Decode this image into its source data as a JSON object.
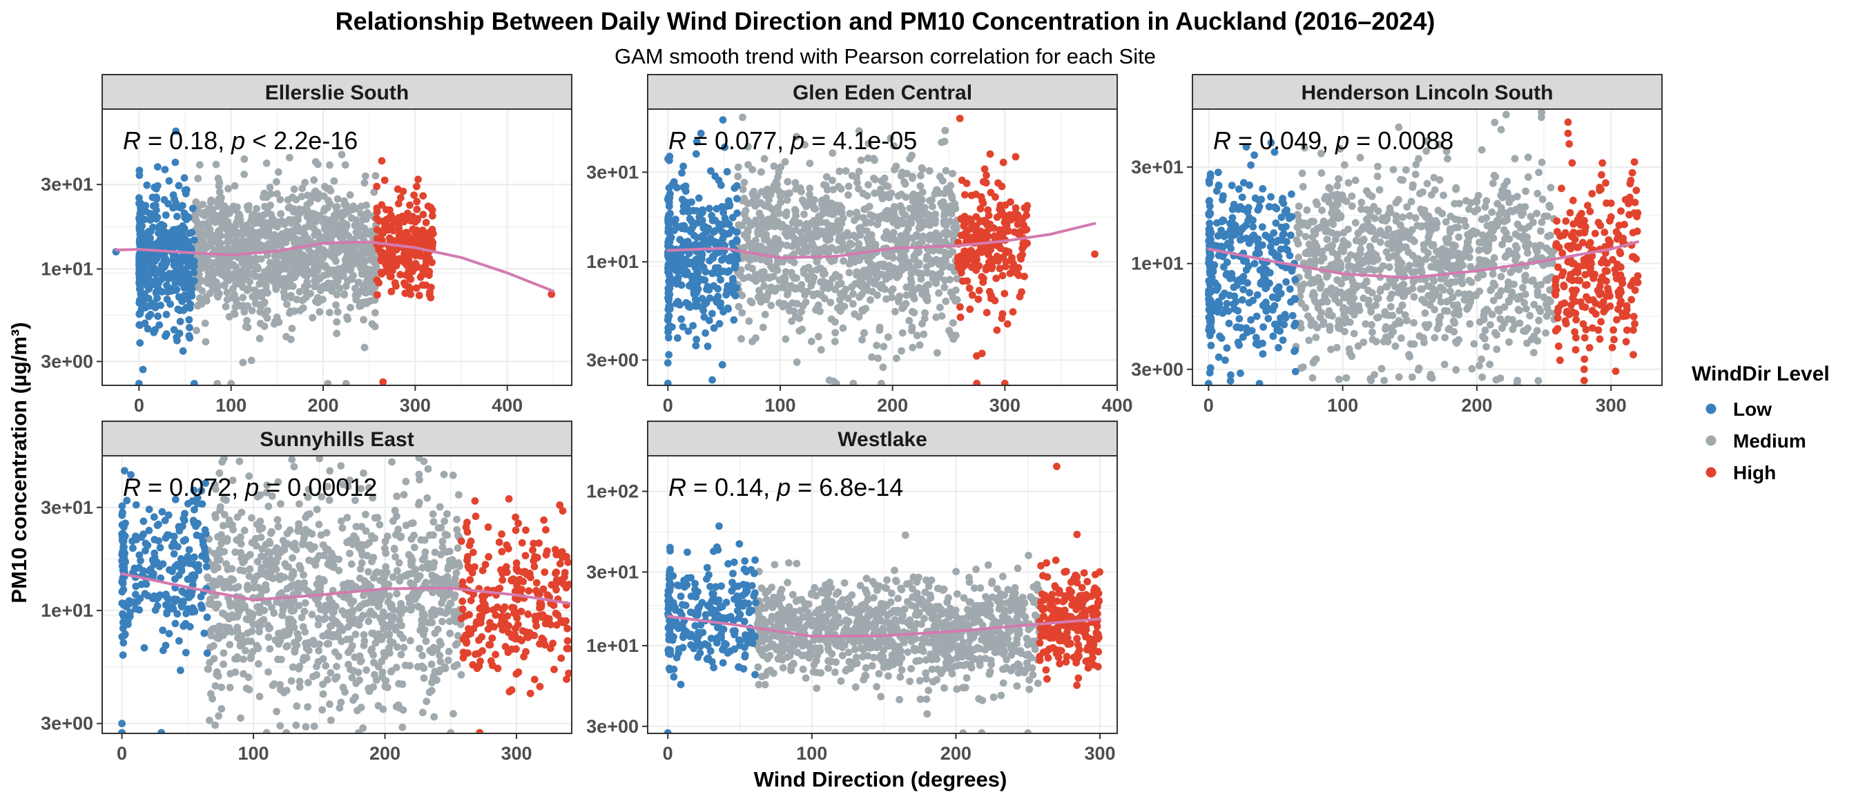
{
  "chart_data": {
    "type": "scatter",
    "title": "Relationship Between Daily Wind Direction and  PM10  Concentration in Auckland (2016–2024)",
    "subtitle": "GAM smooth trend with Pearson correlation for each Site",
    "xlabel": "Wind Direction (degrees)",
    "ylabel": "PM10  concentration (µg/m³)",
    "y_scale": "log10",
    "legend": {
      "title": "WindDir Level",
      "placement": "right",
      "items": [
        {
          "label": "Low",
          "color": "#3A80BC"
        },
        {
          "label": "Medium",
          "color": "#A0A9AD"
        },
        {
          "label": "High",
          "color": "#E2432E"
        }
      ]
    },
    "smooth_color": "#D47AB0",
    "panels": [
      {
        "name": "Ellerslie South",
        "annotation": {
          "r": "0.18",
          "p_op": "<",
          "p": "2.2e-16"
        },
        "xlim": [
          -40,
          470
        ],
        "ylim": [
          2.2,
          80
        ],
        "x_ticks": [
          0,
          100,
          200,
          300,
          400
        ],
        "y_ticks": [
          {
            "value": 3,
            "label": "3e+00"
          },
          {
            "value": 10,
            "label": "1e+01"
          },
          {
            "value": 30,
            "label": "3e+01"
          }
        ],
        "smooth": [
          [
            -25,
            12.8
          ],
          [
            0,
            12.9
          ],
          [
            50,
            12.4
          ],
          [
            100,
            12.0
          ],
          [
            150,
            12.6
          ],
          [
            200,
            14.0
          ],
          [
            250,
            14.2
          ],
          [
            300,
            13.2
          ],
          [
            350,
            11.6
          ],
          [
            400,
            9.5
          ],
          [
            450,
            7.5
          ]
        ],
        "cloud": {
          "low": {
            "x": [
              0,
              60
            ],
            "y": [
              4.5,
              28
            ],
            "n": 420
          },
          "medium": {
            "x": [
              60,
              258
            ],
            "y": [
              5,
              32
            ],
            "n": 1000
          },
          "high": {
            "x": [
              258,
              320
            ],
            "y": [
              6.5,
              27
            ],
            "n": 240
          }
        },
        "extra_points": [
          {
            "x": -25,
            "y": 12.5,
            "level": "Low"
          },
          {
            "x": 40,
            "y": 60,
            "level": "Low"
          },
          {
            "x": 448,
            "y": 7.2,
            "level": "High"
          },
          {
            "x": 265,
            "y": 2.3,
            "level": "High"
          },
          {
            "x": 165,
            "y": 4.0,
            "level": "Medium"
          },
          {
            "x": 245,
            "y": 3.6,
            "level": "Medium"
          },
          {
            "x": 0,
            "y": 2.25,
            "level": "Low"
          },
          {
            "x": 60,
            "y": 2.25,
            "level": "Low"
          },
          {
            "x": 85,
            "y": 2.25,
            "level": "Medium"
          },
          {
            "x": 100,
            "y": 2.25,
            "level": "Medium"
          },
          {
            "x": 205,
            "y": 2.25,
            "level": "Medium"
          },
          {
            "x": 225,
            "y": 2.25,
            "level": "Medium"
          }
        ]
      },
      {
        "name": "Glen Eden Central",
        "annotation": {
          "r": "0.077",
          "p_op": "=",
          "p": "4.1e-05"
        },
        "xlim": [
          -18,
          400
        ],
        "ylim": [
          2.2,
          65
        ],
        "x_ticks": [
          0,
          100,
          200,
          300,
          400
        ],
        "y_ticks": [
          {
            "value": 3,
            "label": "3e+00"
          },
          {
            "value": 10,
            "label": "1e+01"
          },
          {
            "value": 30,
            "label": "3e+01"
          }
        ],
        "smooth": [
          [
            0,
            11.5
          ],
          [
            50,
            11.8
          ],
          [
            100,
            10.5
          ],
          [
            150,
            10.7
          ],
          [
            200,
            11.8
          ],
          [
            260,
            12.2
          ],
          [
            300,
            12.9
          ],
          [
            340,
            14.0
          ],
          [
            380,
            16.0
          ]
        ],
        "cloud": {
          "low": {
            "x": [
              0,
              62
            ],
            "y": [
              3.6,
              34
            ],
            "n": 380
          },
          "medium": {
            "x": [
              62,
              258
            ],
            "y": [
              4.2,
              36
            ],
            "n": 1000
          },
          "high": {
            "x": [
              258,
              320
            ],
            "y": [
              5,
              30
            ],
            "n": 240
          }
        },
        "extra_points": [
          {
            "x": 260,
            "y": 58,
            "level": "High"
          },
          {
            "x": 380,
            "y": 11,
            "level": "High"
          },
          {
            "x": 0,
            "y": 2.9,
            "level": "Low"
          },
          {
            "x": 0,
            "y": 2.25,
            "level": "Low"
          },
          {
            "x": 150,
            "y": 2.25,
            "level": "Medium"
          },
          {
            "x": 165,
            "y": 2.25,
            "level": "Medium"
          },
          {
            "x": 190,
            "y": 2.25,
            "level": "Medium"
          },
          {
            "x": 275,
            "y": 2.25,
            "level": "High"
          },
          {
            "x": 300,
            "y": 2.25,
            "level": "High"
          }
        ]
      },
      {
        "name": "Henderson Lincoln South",
        "annotation": {
          "r": "0.049",
          "p_op": "=",
          "p": "0.0088"
        },
        "xlim": [
          -12,
          338
        ],
        "ylim": [
          2.5,
          58
        ],
        "x_ticks": [
          0,
          100,
          200,
          300
        ],
        "y_ticks": [
          {
            "value": 3,
            "label": "3e+00"
          },
          {
            "value": 10,
            "label": "1e+01"
          },
          {
            "value": 30,
            "label": "3e+01"
          }
        ],
        "smooth": [
          [
            0,
            11.8
          ],
          [
            50,
            10.2
          ],
          [
            100,
            8.9
          ],
          [
            150,
            8.5
          ],
          [
            200,
            9.2
          ],
          [
            250,
            10.3
          ],
          [
            300,
            11.8
          ],
          [
            320,
            12.8
          ]
        ],
        "cloud": {
          "low": {
            "x": [
              0,
              65
            ],
            "y": [
              3.2,
              28
            ],
            "n": 360
          },
          "medium": {
            "x": [
              65,
              258
            ],
            "y": [
              3.1,
              32
            ],
            "n": 1000
          },
          "high": {
            "x": [
              258,
              320
            ],
            "y": [
              3.3,
              28
            ],
            "n": 260
          }
        },
        "extra_points": [
          {
            "x": 268,
            "y": 50,
            "level": "High"
          },
          {
            "x": 268,
            "y": 44,
            "level": "High"
          },
          {
            "x": 280,
            "y": 3.0,
            "level": "High"
          },
          {
            "x": 0,
            "y": 2.55,
            "level": "Low"
          },
          {
            "x": 38,
            "y": 2.55,
            "level": "Low"
          },
          {
            "x": 230,
            "y": 2.55,
            "level": "Medium"
          }
        ]
      },
      {
        "name": "Sunnyhills East",
        "annotation": {
          "r": "0.072",
          "p_op": "=",
          "p": "0.00012"
        },
        "xlim": [
          -15,
          342
        ],
        "ylim": [
          2.7,
          52
        ],
        "x_ticks": [
          0,
          100,
          200,
          300
        ],
        "y_ticks": [
          {
            "value": 3,
            "label": "3e+00"
          },
          {
            "value": 10,
            "label": "1e+01"
          },
          {
            "value": 30,
            "label": "3e+01"
          }
        ],
        "smooth": [
          [
            0,
            14.8
          ],
          [
            50,
            12.8
          ],
          [
            100,
            11.2
          ],
          [
            150,
            11.8
          ],
          [
            200,
            12.6
          ],
          [
            250,
            12.7
          ],
          [
            300,
            11.8
          ],
          [
            340,
            10.8
          ]
        ],
        "cloud": {
          "low": {
            "x": [
              0,
              65
            ],
            "y": [
              6.5,
              36
            ],
            "n": 260
          },
          "medium": {
            "x": [
              65,
              258
            ],
            "y": [
              3.3,
              38
            ],
            "n": 1000
          },
          "high": {
            "x": [
              258,
              340
            ],
            "y": [
              4.5,
              28
            ],
            "n": 260
          }
        },
        "extra_points": [
          {
            "x": 0,
            "y": 3.0,
            "level": "Low"
          },
          {
            "x": 0,
            "y": 2.72,
            "level": "Low"
          },
          {
            "x": 30,
            "y": 2.72,
            "level": "Low"
          },
          {
            "x": 110,
            "y": 2.72,
            "level": "Medium"
          },
          {
            "x": 125,
            "y": 2.72,
            "level": "Medium"
          },
          {
            "x": 180,
            "y": 2.72,
            "level": "Medium"
          },
          {
            "x": 250,
            "y": 2.72,
            "level": "Medium"
          },
          {
            "x": 272,
            "y": 2.72,
            "level": "High"
          }
        ]
      },
      {
        "name": "Westlake",
        "annotation": {
          "r": "0.14",
          "p_op": "=",
          "p": "6.8e-14"
        },
        "xlim": [
          -14,
          312
        ],
        "ylim": [
          2.7,
          170
        ],
        "x_ticks": [
          0,
          100,
          200,
          300
        ],
        "y_ticks": [
          {
            "value": 3,
            "label": "3e+00"
          },
          {
            "value": 10,
            "label": "1e+01"
          },
          {
            "value": 30,
            "label": "3e+01"
          },
          {
            "value": 100,
            "label": "1e+02"
          }
        ],
        "smooth": [
          [
            0,
            15.5
          ],
          [
            50,
            13.5
          ],
          [
            100,
            11.5
          ],
          [
            150,
            11.6
          ],
          [
            200,
            12.4
          ],
          [
            250,
            13.6
          ],
          [
            300,
            14.9
          ]
        ],
        "cloud": {
          "low": {
            "x": [
              0,
              62
            ],
            "y": [
              6,
              40
            ],
            "n": 240
          },
          "medium": {
            "x": [
              62,
              258
            ],
            "y": [
              5.5,
              28
            ],
            "n": 1000
          },
          "high": {
            "x": [
              258,
              300
            ],
            "y": [
              6.5,
              30
            ],
            "n": 240
          }
        },
        "extra_points": [
          {
            "x": 270,
            "y": 145,
            "level": "High"
          },
          {
            "x": 165,
            "y": 52,
            "level": "Medium"
          },
          {
            "x": 0,
            "y": 2.72,
            "level": "Low"
          },
          {
            "x": 205,
            "y": 2.72,
            "level": "Medium"
          },
          {
            "x": 218,
            "y": 2.72,
            "level": "Medium"
          },
          {
            "x": 250,
            "y": 2.72,
            "level": "Medium"
          }
        ]
      }
    ]
  }
}
